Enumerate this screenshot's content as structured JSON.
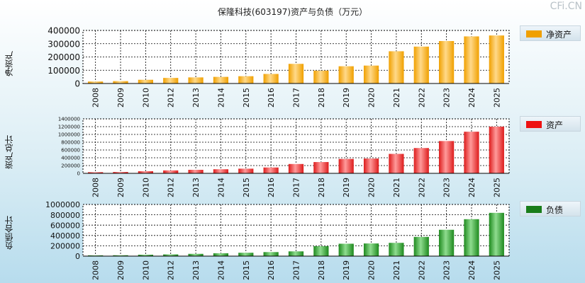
{
  "title": "保隆科技(603197)资产与负债（万元）",
  "watermark": "CFi.CN",
  "chart_data": [
    {
      "type": "bar",
      "name": "equity",
      "ylabel": "净资产",
      "legend": "净资产",
      "color": "#f0a000",
      "color_light": "#ffd98a",
      "ylim": [
        0,
        400000
      ],
      "yticks": [
        0,
        100000,
        200000,
        300000,
        400000
      ],
      "categories": [
        "2008",
        "2009",
        "2010",
        "2012",
        "2013",
        "2014",
        "2015",
        "2016",
        "2017",
        "2018",
        "2019",
        "2020",
        "2021",
        "2022",
        "2023",
        "2024",
        "2025"
      ],
      "values": [
        15000,
        18000,
        28000,
        42000,
        46000,
        50000,
        55000,
        72000,
        148000,
        97000,
        130000,
        135000,
        243000,
        278000,
        320000,
        355000,
        362000
      ]
    },
    {
      "type": "bar",
      "name": "assets",
      "ylabel": "资产总计",
      "legend": "资产",
      "color": "#dd1c1c",
      "color_light": "#ff9a9a",
      "ylim": [
        0,
        1400000
      ],
      "yticks": [
        0,
        200000,
        400000,
        600000,
        800000,
        1000000,
        1200000,
        1400000
      ],
      "categories": [
        "2008",
        "2009",
        "2010",
        "2012",
        "2013",
        "2014",
        "2015",
        "2016",
        "2017",
        "2018",
        "2019",
        "2020",
        "2021",
        "2022",
        "2023",
        "2024",
        "2025"
      ],
      "values": [
        30000,
        35000,
        55000,
        75000,
        90000,
        105000,
        120000,
        150000,
        240000,
        290000,
        370000,
        380000,
        500000,
        650000,
        830000,
        1070000,
        1200000
      ]
    },
    {
      "type": "bar",
      "name": "liabilities",
      "ylabel": "负债合计",
      "legend": "负债",
      "color": "#1e8a1e",
      "color_light": "#8fdc8f",
      "ylim": [
        0,
        1000000
      ],
      "yticks": [
        0,
        200000,
        400000,
        600000,
        800000,
        1000000
      ],
      "categories": [
        "2008",
        "2009",
        "2010",
        "2012",
        "2013",
        "2014",
        "2015",
        "2016",
        "2017",
        "2018",
        "2019",
        "2020",
        "2021",
        "2022",
        "2023",
        "2024",
        "2025"
      ],
      "values": [
        15000,
        17000,
        27000,
        33000,
        44000,
        55000,
        65000,
        78000,
        92000,
        193000,
        240000,
        245000,
        257000,
        372000,
        510000,
        715000,
        838000
      ]
    }
  ]
}
